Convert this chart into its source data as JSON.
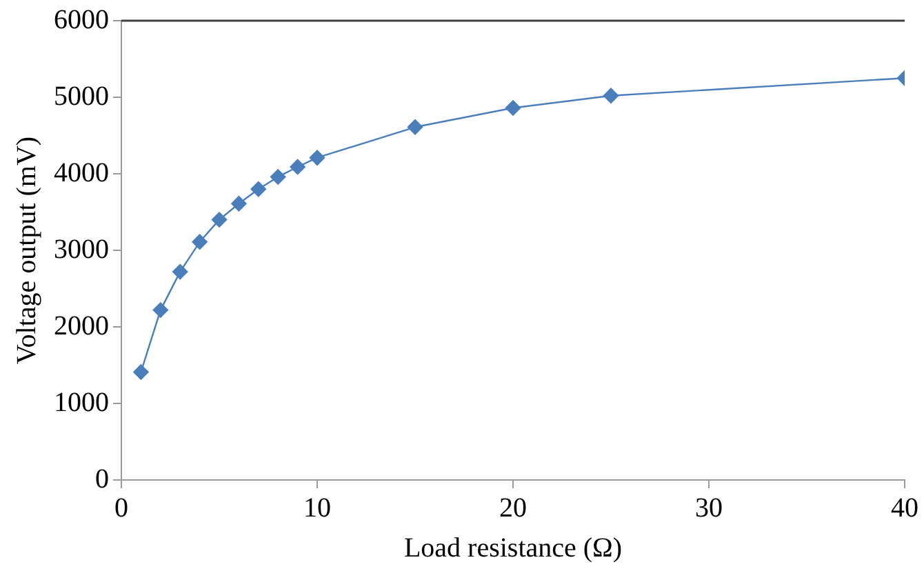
{
  "chart_data": {
    "type": "line",
    "xlabel": "Load resistance (Ω)",
    "ylabel": "Voltage output (mV)",
    "x": [
      1,
      2,
      3,
      4,
      5,
      6,
      7,
      8,
      9,
      10,
      15,
      20,
      25,
      40
    ],
    "series": [
      {
        "color": "#4a7ebb",
        "values": [
          1410,
          2220,
          2720,
          3110,
          3400,
          3610,
          3800,
          3960,
          4090,
          4210,
          4610,
          4860,
          5020,
          5250
        ]
      }
    ],
    "xlim": [
      0,
      40
    ],
    "xticks": [
      0,
      10,
      20,
      30,
      40
    ],
    "ylim": [
      0,
      6000
    ],
    "yticks": [
      0,
      1000,
      2000,
      3000,
      4000,
      5000,
      6000
    ],
    "grid": false,
    "legend": false,
    "marker": "diamond",
    "line_style": "solid"
  }
}
